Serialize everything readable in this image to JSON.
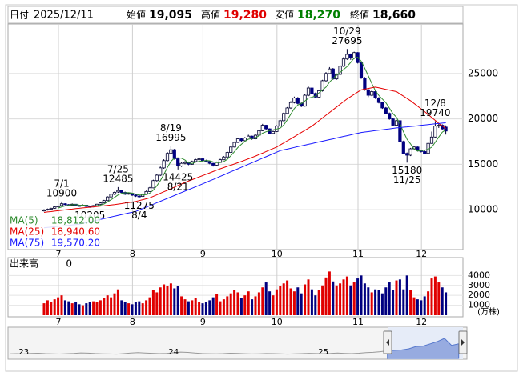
{
  "header": {
    "date_label": "日付",
    "date": "2025/12/11",
    "open_label": "始値",
    "open": "19,095",
    "high_label": "高値",
    "high": "19,280",
    "low_label": "安値",
    "low": "18,270",
    "close_label": "終値",
    "close": "18,660"
  },
  "chart_data": {
    "type": "candlestick",
    "up_color": "#ffffff",
    "down_color": "#000080",
    "grid": true,
    "ylim": [
      5600,
      30450
    ],
    "yticks": [
      10000,
      15000,
      20000,
      25000
    ],
    "xticks": [
      {
        "value": 5,
        "label": "7"
      },
      {
        "value": 26,
        "label": "8"
      },
      {
        "value": 46,
        "label": "9"
      },
      {
        "value": 67,
        "label": "10"
      },
      {
        "value": 90,
        "label": "11"
      },
      {
        "value": 108,
        "label": "12"
      }
    ],
    "candles": [
      [
        9900,
        10050,
        9800,
        9950
      ],
      [
        9950,
        10120,
        9900,
        10050
      ],
      [
        10050,
        10200,
        9980,
        10150
      ],
      [
        10150,
        10350,
        10100,
        10300
      ],
      [
        10300,
        10480,
        10250,
        10400
      ],
      [
        10450,
        10900,
        10400,
        10650
      ],
      [
        10650,
        10700,
        10480,
        10550
      ],
      [
        10550,
        10620,
        10420,
        10500
      ],
      [
        10480,
        10680,
        10450,
        10600
      ],
      [
        10600,
        10620,
        10400,
        10450
      ],
      [
        10450,
        10520,
        10330,
        10400
      ],
      [
        10400,
        10580,
        10380,
        10500
      ],
      [
        10500,
        10530,
        10300,
        10350
      ],
      [
        10350,
        10420,
        10205,
        10300
      ],
      [
        10300,
        10500,
        10260,
        10450
      ],
      [
        10450,
        10650,
        10420,
        10600
      ],
      [
        10600,
        10800,
        10550,
        10750
      ],
      [
        10750,
        11080,
        10700,
        11000
      ],
      [
        11000,
        11480,
        10950,
        11400
      ],
      [
        11400,
        11780,
        11350,
        11700
      ],
      [
        11700,
        12000,
        11600,
        11900
      ],
      [
        11950,
        12485,
        11850,
        12100
      ],
      [
        12100,
        12200,
        11850,
        11900
      ],
      [
        11900,
        11980,
        11620,
        11700
      ],
      [
        11700,
        11900,
        11650,
        11800
      ],
      [
        11800,
        11850,
        11520,
        11600
      ],
      [
        11600,
        11700,
        11400,
        11500
      ],
      [
        11500,
        11600,
        11275,
        11450
      ],
      [
        11450,
        11780,
        11400,
        11700
      ],
      [
        11700,
        12100,
        11650,
        12000
      ],
      [
        12000,
        12500,
        11950,
        12400
      ],
      [
        12400,
        13300,
        12350,
        13200
      ],
      [
        13200,
        13950,
        13100,
        13800
      ],
      [
        13800,
        14750,
        13700,
        14600
      ],
      [
        14600,
        15550,
        14500,
        15400
      ],
      [
        15400,
        16350,
        15300,
        16200
      ],
      [
        16200,
        16995,
        16100,
        16600
      ],
      [
        16600,
        16700,
        15500,
        15600
      ],
      [
        15600,
        15700,
        14425,
        14800
      ],
      [
        14800,
        15250,
        14700,
        15100
      ],
      [
        15100,
        15350,
        15000,
        15200
      ],
      [
        15200,
        15300,
        14900,
        15000
      ],
      [
        15000,
        15400,
        14950,
        15300
      ],
      [
        15300,
        15600,
        15200,
        15500
      ],
      [
        15500,
        15750,
        15400,
        15600
      ],
      [
        15600,
        15650,
        15300,
        15400
      ],
      [
        15400,
        15500,
        15200,
        15300
      ],
      [
        15300,
        15400,
        15000,
        15100
      ],
      [
        15100,
        15150,
        14750,
        14900
      ],
      [
        14900,
        15300,
        14850,
        15200
      ],
      [
        15200,
        15600,
        15150,
        15500
      ],
      [
        15500,
        15900,
        15450,
        15800
      ],
      [
        15800,
        16400,
        15750,
        16300
      ],
      [
        16300,
        17000,
        16250,
        16900
      ],
      [
        16900,
        17500,
        16850,
        17400
      ],
      [
        17400,
        17900,
        17350,
        17800
      ],
      [
        17800,
        17900,
        17500,
        17600
      ],
      [
        17600,
        18000,
        17550,
        17900
      ],
      [
        17900,
        18250,
        17850,
        18100
      ],
      [
        18100,
        18150,
        17700,
        17800
      ],
      [
        17800,
        18300,
        17750,
        18200
      ],
      [
        18200,
        18800,
        18150,
        18700
      ],
      [
        18700,
        19450,
        18650,
        19300
      ],
      [
        19300,
        19350,
        18800,
        18900
      ],
      [
        18900,
        18950,
        18300,
        18400
      ],
      [
        18400,
        18700,
        18350,
        18600
      ],
      [
        18600,
        19300,
        18550,
        19200
      ],
      [
        19200,
        19900,
        19150,
        19800
      ],
      [
        19800,
        20700,
        19700,
        20600
      ],
      [
        20600,
        21300,
        20500,
        21200
      ],
      [
        21200,
        21950,
        21100,
        21800
      ],
      [
        21800,
        22450,
        21700,
        22300
      ],
      [
        22300,
        22400,
        21600,
        21700
      ],
      [
        21700,
        21800,
        21300,
        21400
      ],
      [
        21400,
        22700,
        21350,
        22600
      ],
      [
        22600,
        23550,
        22500,
        23400
      ],
      [
        23400,
        23450,
        22700,
        22800
      ],
      [
        22800,
        22900,
        22300,
        22400
      ],
      [
        22400,
        23200,
        22350,
        23100
      ],
      [
        23100,
        24300,
        23000,
        24200
      ],
      [
        24200,
        25150,
        24100,
        25000
      ],
      [
        25000,
        25700,
        24900,
        25500
      ],
      [
        25500,
        25600,
        24300,
        24400
      ],
      [
        24400,
        25000,
        24300,
        24900
      ],
      [
        24900,
        25950,
        24800,
        25800
      ],
      [
        25800,
        26800,
        25700,
        26600
      ],
      [
        26600,
        27695,
        26500,
        27100
      ],
      [
        27100,
        27200,
        26500,
        26700
      ],
      [
        26700,
        27400,
        26600,
        27300
      ],
      [
        27300,
        27350,
        26100,
        26200
      ],
      [
        26200,
        26300,
        24400,
        24500
      ],
      [
        24500,
        24600,
        23100,
        23200
      ],
      [
        23200,
        23300,
        22400,
        22600
      ],
      [
        22600,
        23200,
        22500,
        23000
      ],
      [
        23000,
        23100,
        22200,
        22300
      ],
      [
        22300,
        22400,
        21700,
        21800
      ],
      [
        21800,
        21900,
        21100,
        21200
      ],
      [
        21200,
        21300,
        20500,
        20600
      ],
      [
        20600,
        20700,
        19900,
        20000
      ],
      [
        20000,
        20100,
        19200,
        19300
      ],
      [
        19300,
        19900,
        19200,
        19800
      ],
      [
        19800,
        19850,
        17400,
        17500
      ],
      [
        17500,
        17600,
        16100,
        16200
      ],
      [
        16200,
        16300,
        15180,
        16000
      ],
      [
        16000,
        16800,
        15900,
        16700
      ],
      [
        16700,
        17000,
        16600,
        16900
      ],
      [
        16900,
        16950,
        16400,
        16500
      ],
      [
        16500,
        16600,
        16300,
        16400
      ],
      [
        16400,
        16500,
        16100,
        16200
      ],
      [
        16200,
        17400,
        16150,
        17300
      ],
      [
        17300,
        18600,
        17250,
        18000
      ],
      [
        18000,
        19740,
        17950,
        19200
      ],
      [
        19200,
        19500,
        19000,
        19300
      ],
      [
        19300,
        19400,
        18800,
        18900
      ],
      [
        19095,
        19280,
        18270,
        18660
      ]
    ],
    "series": [
      {
        "name": "MA(5)",
        "color": "#2e8b2e",
        "legend_value": "18,812.00",
        "values": [
          null,
          null,
          null,
          null,
          10170,
          10310,
          10410,
          10480,
          10540,
          10550,
          10500,
          10490,
          10460,
          10400,
          10400,
          10440,
          10490,
          10620,
          10840,
          11090,
          11350,
          11620,
          11800,
          11860,
          11880,
          11820,
          11700,
          11610,
          11610,
          11650,
          11810,
          12150,
          12620,
          13200,
          13880,
          14640,
          15320,
          15680,
          15720,
          15660,
          15460,
          15140,
          15080,
          15220,
          15320,
          15360,
          15420,
          15380,
          15260,
          15180,
          15200,
          15300,
          15540,
          15940,
          16380,
          16840,
          17200,
          17520,
          17760,
          17840,
          17920,
          18140,
          18420,
          18580,
          18700,
          18780,
          18880,
          18980,
          19320,
          19880,
          20520,
          21140,
          21520,
          21680,
          21960,
          22280,
          22380,
          22520,
          22860,
          23180,
          23500,
          24040,
          24440,
          24800,
          25120,
          25440,
          25760,
          26220,
          26700,
          26780,
          26360,
          25580,
          24760,
          23900,
          23120,
          22580,
          22180,
          21780,
          21180,
          20580,
          20180,
          19440,
          18560,
          17760,
          17240,
          16660,
          16460,
          16500,
          16540,
          16660,
          16880,
          17420,
          18000,
          18540,
          18812
        ]
      },
      {
        "name": "MA(25)",
        "color": "#e60000",
        "legend_value": "18,940.60",
        "values": [
          9700,
          9750,
          9790,
          9840,
          9880,
          9930,
          9970,
          10020,
          10060,
          10110,
          10150,
          10190,
          10230,
          10270,
          10310,
          10350,
          10390,
          10430,
          10470,
          10510,
          10550,
          10610,
          10670,
          10730,
          10780,
          10840,
          10900,
          11000,
          11100,
          11200,
          11300,
          11470,
          11630,
          11800,
          11970,
          12130,
          12300,
          12480,
          12650,
          12830,
          13000,
          13150,
          13300,
          13450,
          13600,
          13750,
          13900,
          14050,
          14200,
          14350,
          14500,
          14630,
          14770,
          14900,
          15030,
          15170,
          15300,
          15450,
          15600,
          15750,
          15900,
          16070,
          16230,
          16400,
          16570,
          16730,
          16900,
          17130,
          17350,
          17580,
          17800,
          18030,
          18270,
          18500,
          18730,
          18970,
          19200,
          19500,
          19800,
          20100,
          20400,
          20700,
          21000,
          21300,
          21600,
          21900,
          22200,
          22450,
          22700,
          22950,
          23200,
          23280,
          23350,
          23430,
          23500,
          23420,
          23330,
          23250,
          23170,
          23080,
          23000,
          22750,
          22500,
          22250,
          22000,
          21700,
          21400,
          21100,
          20800,
          20480,
          20150,
          19830,
          19500,
          19220,
          18940.6
        ]
      },
      {
        "name": "MA(75)",
        "color": "#1a1aff",
        "legend_value": "19,570.20",
        "values": [
          8000,
          8040,
          8080,
          8120,
          8160,
          8200,
          8240,
          8280,
          8320,
          8360,
          8400,
          8490,
          8580,
          8660,
          8750,
          8840,
          8930,
          9010,
          9100,
          9190,
          9280,
          9360,
          9450,
          9540,
          9630,
          9710,
          9800,
          9960,
          10120,
          10280,
          10440,
          10600,
          10760,
          10920,
          11080,
          11240,
          11400,
          11560,
          11720,
          11880,
          12040,
          12200,
          12360,
          12520,
          12680,
          12840,
          13000,
          13170,
          13330,
          13500,
          13670,
          13830,
          14000,
          14170,
          14330,
          14500,
          14670,
          14830,
          15000,
          15170,
          15330,
          15500,
          15670,
          15830,
          16000,
          16170,
          16330,
          16500,
          16590,
          16670,
          16760,
          16850,
          16940,
          17020,
          17110,
          17200,
          17280,
          17370,
          17460,
          17540,
          17630,
          17720,
          17800,
          17890,
          17980,
          18070,
          18150,
          18240,
          18330,
          18410,
          18500,
          18550,
          18600,
          18650,
          18700,
          18750,
          18800,
          18850,
          18900,
          18950,
          19000,
          19040,
          19080,
          19120,
          19160,
          19200,
          19240,
          19290,
          19330,
          19370,
          19410,
          19450,
          19490,
          19530,
          19570.2
        ]
      }
    ],
    "annotations": [
      {
        "date": "7/1",
        "price": 10900
      },
      {
        "price": 10205
      },
      {
        "date": "7/25",
        "price": 12485
      },
      {
        "date": "8/4",
        "price": 11275
      },
      {
        "date": "8/19",
        "price": 16995
      },
      {
        "date": "8/21",
        "price": 14425
      },
      {
        "date": "10/29",
        "price": 27695
      },
      {
        "date": "11/25",
        "price": 15180
      },
      {
        "date": "12/8",
        "price": 19740
      }
    ],
    "volume": {
      "label": "出来高",
      "value": 0,
      "unit": "(万株)",
      "up_color": "#e00000",
      "down_color": "#000080",
      "ylim": [
        0,
        5800
      ],
      "yticks": [
        1000,
        2000,
        3000,
        4000
      ],
      "values": [
        1200,
        1500,
        1300,
        1600,
        1800,
        2000,
        1500,
        1400,
        1200,
        1300,
        1100,
        1000,
        1200,
        1300,
        1400,
        1300,
        1500,
        1700,
        2000,
        1800,
        2200,
        2600,
        1500,
        1300,
        1200,
        1100,
        1300,
        1400,
        1200,
        1500,
        1800,
        2500,
        2300,
        2800,
        3100,
        2900,
        3200,
        2700,
        2900,
        1900,
        1600,
        1400,
        1500,
        1700,
        1300,
        1200,
        1300,
        1500,
        1800,
        2100,
        1400,
        1600,
        1900,
        2200,
        2500,
        2300,
        1700,
        2000,
        2400,
        1600,
        1900,
        2300,
        2800,
        3300,
        2400,
        2000,
        2600,
        2900,
        3200,
        3500,
        2700,
        2400,
        2800,
        2200,
        3100,
        3600,
        2600,
        2000,
        2500,
        3000,
        3800,
        4400,
        3400,
        3000,
        3200,
        3600,
        3900,
        3000,
        3300,
        3700,
        4000,
        3200,
        2800,
        2300,
        2600,
        2500,
        2200,
        2800,
        3300,
        2500,
        3500,
        3600,
        2600,
        4000,
        2500,
        1800,
        1600,
        1500,
        1900,
        2400,
        3700,
        3900,
        3300,
        2800,
        2300
      ]
    },
    "navigator": {
      "color": "#999999",
      "window_color": "#5577cc",
      "ylim": [
        0,
        50000
      ],
      "xticks": [
        {
          "value": 2,
          "label": "23"
        },
        {
          "value": 23,
          "label": "24"
        },
        {
          "value": 44,
          "label": "25"
        }
      ],
      "values": [
        6000,
        6200,
        5800,
        6500,
        6800,
        6300,
        6000,
        5700,
        6100,
        6600,
        7200,
        6900,
        6400,
        6000,
        5800,
        5600,
        6200,
        7000,
        7600,
        7100,
        6700,
        6300,
        6500,
        7400,
        8200,
        7800,
        7000,
        6400,
        6100,
        5900,
        6300,
        6800,
        6500,
        6100,
        5800,
        6000,
        6400,
        6200,
        5900,
        5600,
        5900,
        6300,
        6700,
        6400,
        6100,
        6500,
        7000,
        6600,
        6200,
        6800,
        7500,
        7900,
        8800,
        10000,
        10500,
        11000,
        12500,
        15500,
        16000,
        19000,
        22000,
        26000,
        17000,
        19000
      ]
    }
  }
}
